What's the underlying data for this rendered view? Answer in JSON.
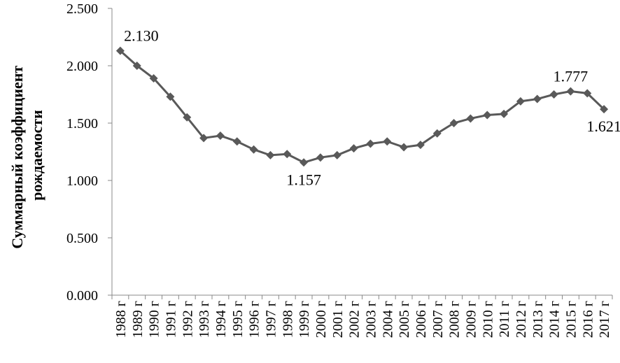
{
  "chart_data": {
    "type": "line",
    "ylabel": [
      "Суммарный коэффициент",
      "рождаемости"
    ],
    "categories": [
      "1988 г",
      "1989 г",
      "1990 г",
      "1991 г",
      "1992 г",
      "1993 г",
      "1994 г",
      "1995 г",
      "1996 г",
      "1997 г",
      "1998 г",
      "1999 г",
      "2000 г",
      "2001 г",
      "2002 г",
      "2003 г",
      "2004 г",
      "2005 г",
      "2006 г",
      "2007 г",
      "2008 г",
      "2009 г",
      "2010 г",
      "2011 г",
      "2012 г",
      "2013 г",
      "2014 г",
      "2015 г",
      "2016 г",
      "2017 г"
    ],
    "values": [
      2.13,
      2.0,
      1.89,
      1.73,
      1.55,
      1.37,
      1.39,
      1.34,
      1.27,
      1.22,
      1.23,
      1.157,
      1.2,
      1.22,
      1.28,
      1.32,
      1.34,
      1.29,
      1.31,
      1.41,
      1.5,
      1.54,
      1.57,
      1.58,
      1.69,
      1.71,
      1.75,
      1.777,
      1.76,
      1.621
    ],
    "value_labels": [
      "2.130",
      null,
      null,
      null,
      null,
      null,
      null,
      null,
      null,
      null,
      null,
      "1.157",
      null,
      null,
      null,
      null,
      null,
      null,
      null,
      null,
      null,
      null,
      null,
      null,
      null,
      null,
      null,
      "1.777",
      null,
      "1.621"
    ],
    "color": "#595959",
    "ylim": [
      0,
      2.5
    ],
    "yticks": [
      {
        "value": 0,
        "label": "0.000"
      },
      {
        "value": 0.5,
        "label": "0.500"
      },
      {
        "value": 1,
        "label": "1.000"
      },
      {
        "value": 1.5,
        "label": "1.500"
      },
      {
        "value": 2,
        "label": "2.000"
      },
      {
        "value": 2.5,
        "label": "2.500"
      }
    ]
  }
}
